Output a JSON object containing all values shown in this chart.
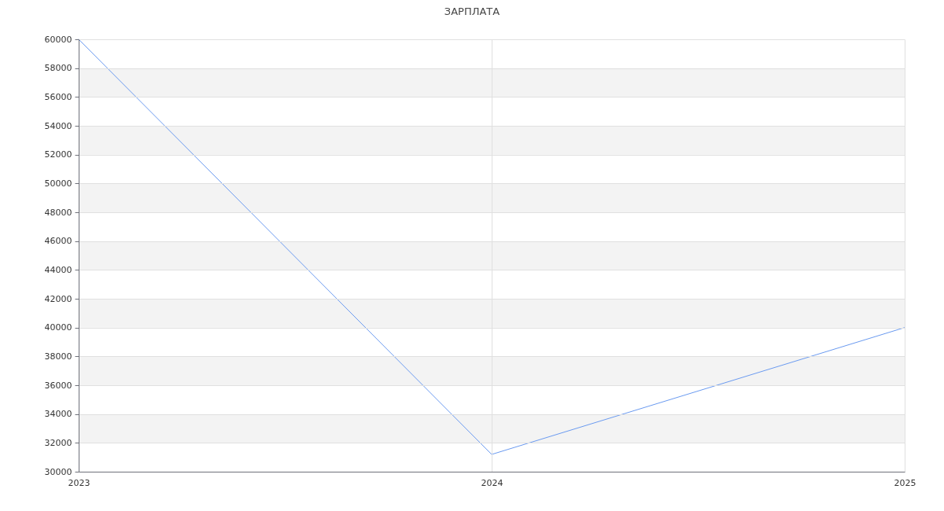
{
  "chart_data": {
    "type": "line",
    "title": "ЗАРПЛАТА",
    "categories": [
      "2023",
      "2024",
      "2025"
    ],
    "series": [
      {
        "color": "#6a9af0",
        "values": [
          60000,
          31200,
          40000
        ]
      }
    ],
    "ylim": [
      30000,
      60000
    ],
    "yticks": [
      30000,
      32000,
      34000,
      36000,
      38000,
      40000,
      42000,
      44000,
      46000,
      48000,
      50000,
      52000,
      54000,
      56000,
      58000,
      60000
    ],
    "bands": [
      {
        "axis": "y",
        "from": 32000,
        "to": 34000,
        "color": "#f3f3f3"
      },
      {
        "axis": "y",
        "from": 36000,
        "to": 38000,
        "color": "#f3f3f3"
      },
      {
        "axis": "y",
        "from": 40000,
        "to": 42000,
        "color": "#f3f3f3"
      },
      {
        "axis": "y",
        "from": 44000,
        "to": 46000,
        "color": "#f3f3f3"
      },
      {
        "axis": "y",
        "from": 48000,
        "to": 50000,
        "color": "#f3f3f3"
      },
      {
        "axis": "y",
        "from": 52000,
        "to": 54000,
        "color": "#f3f3f3"
      },
      {
        "axis": "y",
        "from": 56000,
        "to": 58000,
        "color": "#f3f3f3"
      }
    ],
    "grid": true,
    "marker": "none",
    "line_style": "solid"
  }
}
